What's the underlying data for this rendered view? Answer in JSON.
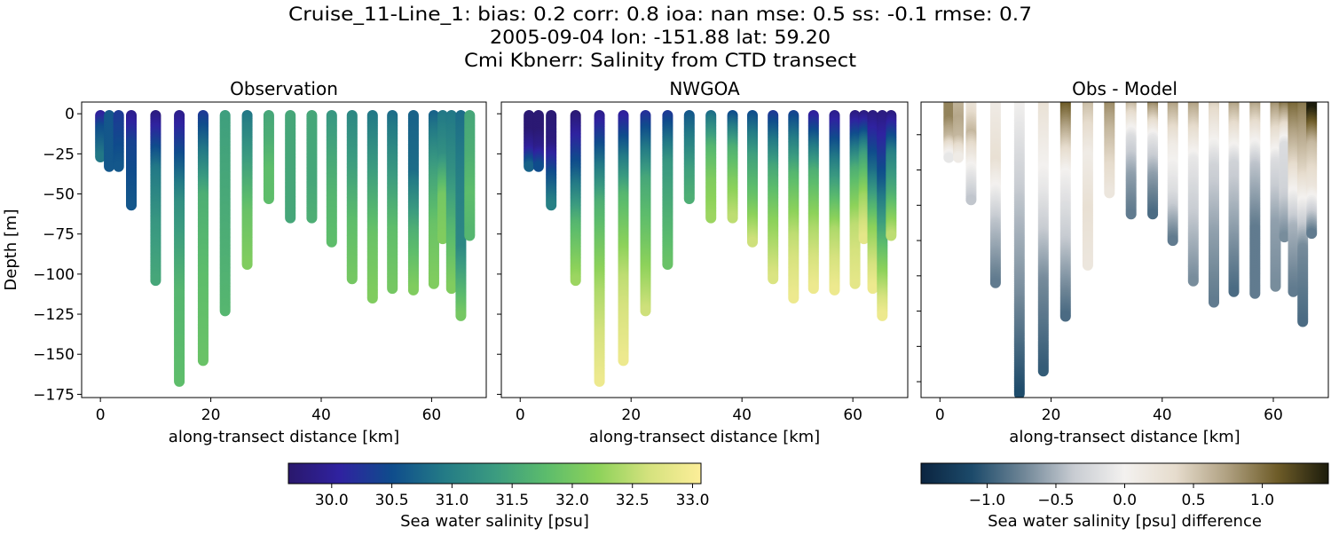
{
  "chart_data": {
    "type": "scatter",
    "title_lines": [
      "Cruise_11-Line_1: bias: 0.2  corr: 0.8  ioa: nan  mse: 0.5  ss: -0.1  rmse: 0.7",
      "2005-09-04 lon: -151.88 lat: 59.20",
      "Cmi Kbnerr: Salinity from CTD transect"
    ],
    "panels": [
      {
        "title": "Observation",
        "xlabel": "along-transect distance [km]",
        "ylabel": "Depth [m]",
        "field": "obs",
        "ylim": [
          -177,
          7.3
        ],
        "yticks": [
          0,
          -25,
          -50,
          -75,
          -100,
          -125,
          -150,
          -175
        ],
        "yticklabels": [
          "0",
          "−25",
          "−50",
          "−75",
          "−100",
          "−125",
          "−150",
          "−175"
        ]
      },
      {
        "title": "NWGOA",
        "xlabel": "along-transect distance [km]",
        "ylabel": "",
        "field": "model",
        "ylim": [
          -177,
          7.3
        ],
        "yticks": [
          0,
          -25,
          -50,
          -75,
          -100,
          -125,
          -150,
          -175
        ],
        "yticklabels": []
      },
      {
        "title": "Obs - Model",
        "xlabel": "along-transect distance [km]",
        "ylabel": "",
        "field": "diff",
        "ylim": [
          -169,
          -1.5
        ],
        "yticks": [
          -20,
          -40,
          -60,
          -80,
          -100,
          -120,
          -140,
          -160
        ],
        "yticklabels": []
      }
    ],
    "xlim": [
      -3.4,
      69.9
    ],
    "xticks": [
      0,
      20,
      40,
      60
    ],
    "xticklabels": [
      "0",
      "20",
      "40",
      "60"
    ],
    "profile_levels": "evenly spaced from surface to max depth",
    "casts": [
      {
        "distance_km": 0.0,
        "max_depth_m": 27,
        "obs": [
          30.0,
          30.5,
          30.7,
          30.9
        ],
        "model": null
      },
      {
        "distance_km": 1.6,
        "max_depth_m": 33,
        "obs": [
          30.6,
          30.6,
          30.6,
          30.6
        ],
        "model": [
          29.7,
          29.7,
          30.0,
          30.7
        ]
      },
      {
        "distance_km": 3.3,
        "max_depth_m": 33,
        "obs": [
          30.3,
          30.4,
          30.5,
          30.6
        ],
        "model": [
          29.7,
          29.7,
          29.9,
          30.5
        ]
      },
      {
        "distance_km": 5.6,
        "max_depth_m": 57,
        "obs": [
          29.9,
          30.4,
          30.5,
          30.6
        ],
        "model": [
          29.7,
          29.8,
          30.5,
          31.0
        ]
      },
      {
        "distance_km": 10.0,
        "max_depth_m": 104,
        "obs": [
          29.8,
          30.9,
          31.3,
          31.5
        ],
        "model": [
          29.7,
          30.6,
          31.7,
          32.3
        ]
      },
      {
        "distance_km": 14.3,
        "max_depth_m": 167,
        "obs": [
          29.9,
          31.2,
          31.7,
          31.8
        ],
        "model": [
          29.9,
          31.6,
          32.4,
          32.9
        ]
      },
      {
        "distance_km": 18.6,
        "max_depth_m": 154,
        "obs": [
          30.3,
          31.6,
          31.8,
          31.9
        ],
        "model": [
          30.0,
          31.7,
          32.5,
          32.9
        ]
      },
      {
        "distance_km": 22.6,
        "max_depth_m": 123,
        "obs": [
          31.4,
          31.5,
          31.6,
          31.7
        ],
        "model": [
          30.2,
          31.5,
          32.0,
          32.6
        ]
      },
      {
        "distance_km": 26.6,
        "max_depth_m": 94,
        "obs": [
          30.9,
          31.4,
          31.9,
          32.1
        ],
        "model": [
          30.3,
          31.3,
          31.6,
          31.9
        ]
      },
      {
        "distance_km": 30.5,
        "max_depth_m": 53,
        "obs": [
          31.5,
          31.6,
          31.8,
          31.8
        ],
        "model": [
          30.6,
          31.0,
          31.4,
          31.6
        ]
      },
      {
        "distance_km": 34.4,
        "max_depth_m": 65,
        "obs": [
          31.5,
          31.5,
          31.5,
          31.5
        ],
        "model": [
          30.8,
          31.7,
          32.1,
          32.3
        ]
      },
      {
        "distance_km": 38.3,
        "max_depth_m": 65,
        "obs": [
          31.5,
          31.5,
          31.5,
          31.6
        ],
        "model": [
          30.5,
          31.6,
          32.1,
          32.5
        ]
      },
      {
        "distance_km": 41.9,
        "max_depth_m": 80,
        "obs": [
          31.3,
          31.5,
          31.7,
          31.8
        ],
        "model": [
          30.5,
          31.4,
          31.9,
          32.6
        ]
      },
      {
        "distance_km": 45.6,
        "max_depth_m": 103,
        "obs": [
          31.1,
          31.4,
          31.8,
          32.0
        ],
        "model": [
          30.3,
          31.5,
          32.2,
          32.7
        ]
      },
      {
        "distance_km": 49.3,
        "max_depth_m": 115,
        "obs": [
          30.9,
          31.4,
          31.9,
          32.1
        ],
        "model": [
          30.4,
          31.7,
          32.5,
          32.9
        ]
      },
      {
        "distance_km": 52.9,
        "max_depth_m": 109,
        "obs": [
          30.8,
          31.3,
          31.8,
          32.0
        ],
        "model": [
          30.0,
          31.6,
          32.4,
          32.9
        ]
      },
      {
        "distance_km": 56.7,
        "max_depth_m": 110,
        "obs": [
          30.7,
          30.8,
          31.6,
          32.1
        ],
        "model": [
          29.9,
          31.2,
          32.4,
          32.9
        ]
      },
      {
        "distance_km": 60.4,
        "max_depth_m": 106,
        "obs": [
          30.7,
          31.4,
          31.9,
          32.1
        ],
        "model": [
          29.8,
          31.6,
          32.5,
          32.8
        ]
      },
      {
        "distance_km": 62.0,
        "max_depth_m": 78,
        "obs": [
          30.9,
          31.2,
          32.0,
          32.1
        ],
        "model": [
          29.8,
          31.4,
          32.3,
          32.8
        ]
      },
      {
        "distance_km": 63.6,
        "max_depth_m": 109,
        "obs": [
          30.9,
          31.2,
          31.7,
          32.1
        ],
        "model": [
          29.8,
          30.8,
          32.2,
          32.9
        ]
      },
      {
        "distance_km": 65.3,
        "max_depth_m": 126,
        "obs": [
          30.8,
          31.0,
          31.1,
          32.0
        ],
        "model": [
          29.8,
          30.6,
          31.8,
          32.9
        ]
      },
      {
        "distance_km": 66.9,
        "max_depth_m": 76,
        "obs": [
          31.5,
          31.6,
          31.8,
          31.7
        ],
        "model": [
          29.8,
          31.0,
          31.6,
          32.5
        ]
      }
    ],
    "colorbars": [
      {
        "label": "Sea water salinity [psu]",
        "vmin": 29.64,
        "vmax": 33.07,
        "ticks": [
          30.0,
          30.5,
          31.0,
          31.5,
          32.0,
          32.5,
          33.0
        ],
        "ticklabels": [
          "30.0",
          "30.5",
          "31.0",
          "31.5",
          "32.0",
          "32.5",
          "33.0"
        ],
        "colormap": "haline",
        "colors": [
          "#2a186c",
          "#2f22a0",
          "#0f4c8c",
          "#237a86",
          "#3b9b80",
          "#5cbc6c",
          "#8dd25a",
          "#d5e27e",
          "#fdee99"
        ]
      },
      {
        "label": "Sea water salinity [psu] difference",
        "vmin": -1.48,
        "vmax": 1.48,
        "ticks": [
          -1.0,
          -0.5,
          0.0,
          0.5,
          1.0
        ],
        "ticklabels": [
          "−1.0",
          "−0.5",
          "0.0",
          "0.5",
          "1.0"
        ],
        "colormap": "diff",
        "colors": [
          "#0b2440",
          "#1c4a6a",
          "#6e8596",
          "#c8ccd2",
          "#f3f1ef",
          "#e6dccd",
          "#b0a182",
          "#6e5c28",
          "#1c1c0c"
        ]
      }
    ]
  }
}
